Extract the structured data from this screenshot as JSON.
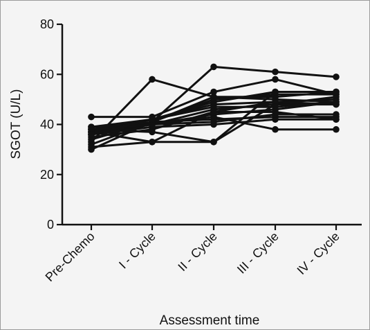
{
  "chart_data": {
    "type": "line",
    "xlabel": "Assessment time",
    "ylabel": "SGOT (U/L)",
    "ylim": [
      0,
      80
    ],
    "yticks": [
      0,
      20,
      40,
      60,
      80
    ],
    "categories": [
      "Pre-Chemo",
      "I - Cycle",
      "II - Cycle",
      "III - Cycle",
      "IV - Cycle"
    ],
    "series": [
      {
        "values": [
          43,
          43,
          53,
          58,
          52
        ]
      },
      {
        "values": [
          30,
          41,
          63,
          61,
          59
        ]
      },
      {
        "values": [
          33,
          58,
          51,
          51,
          53
        ]
      },
      {
        "values": [
          37,
          33,
          33,
          53,
          53
        ]
      },
      {
        "values": [
          38,
          37,
          33,
          48,
          51
        ]
      },
      {
        "values": [
          39,
          42,
          48,
          49,
          50
        ]
      },
      {
        "values": [
          36,
          40,
          46,
          48,
          48
        ]
      },
      {
        "values": [
          35,
          38,
          45,
          49,
          48
        ]
      },
      {
        "values": [
          34,
          41,
          42,
          43,
          43
        ]
      },
      {
        "values": [
          37,
          40,
          44,
          46,
          49
        ]
      },
      {
        "values": [
          32,
          41,
          50,
          52,
          52
        ]
      },
      {
        "values": [
          38,
          42,
          47,
          47,
          49
        ]
      },
      {
        "values": [
          39,
          40,
          43,
          38,
          38
        ]
      },
      {
        "values": [
          31,
          33,
          45,
          45,
          42
        ]
      },
      {
        "values": [
          36,
          39,
          40,
          42,
          42
        ]
      },
      {
        "values": [
          37,
          41,
          51,
          50,
          49
        ]
      },
      {
        "values": [
          38,
          40,
          41,
          44,
          44
        ]
      },
      {
        "values": [
          36,
          42,
          49,
          53,
          53
        ]
      }
    ],
    "legend": "none",
    "grid": false,
    "line_color": "#111111",
    "marker": "filled-circle"
  }
}
